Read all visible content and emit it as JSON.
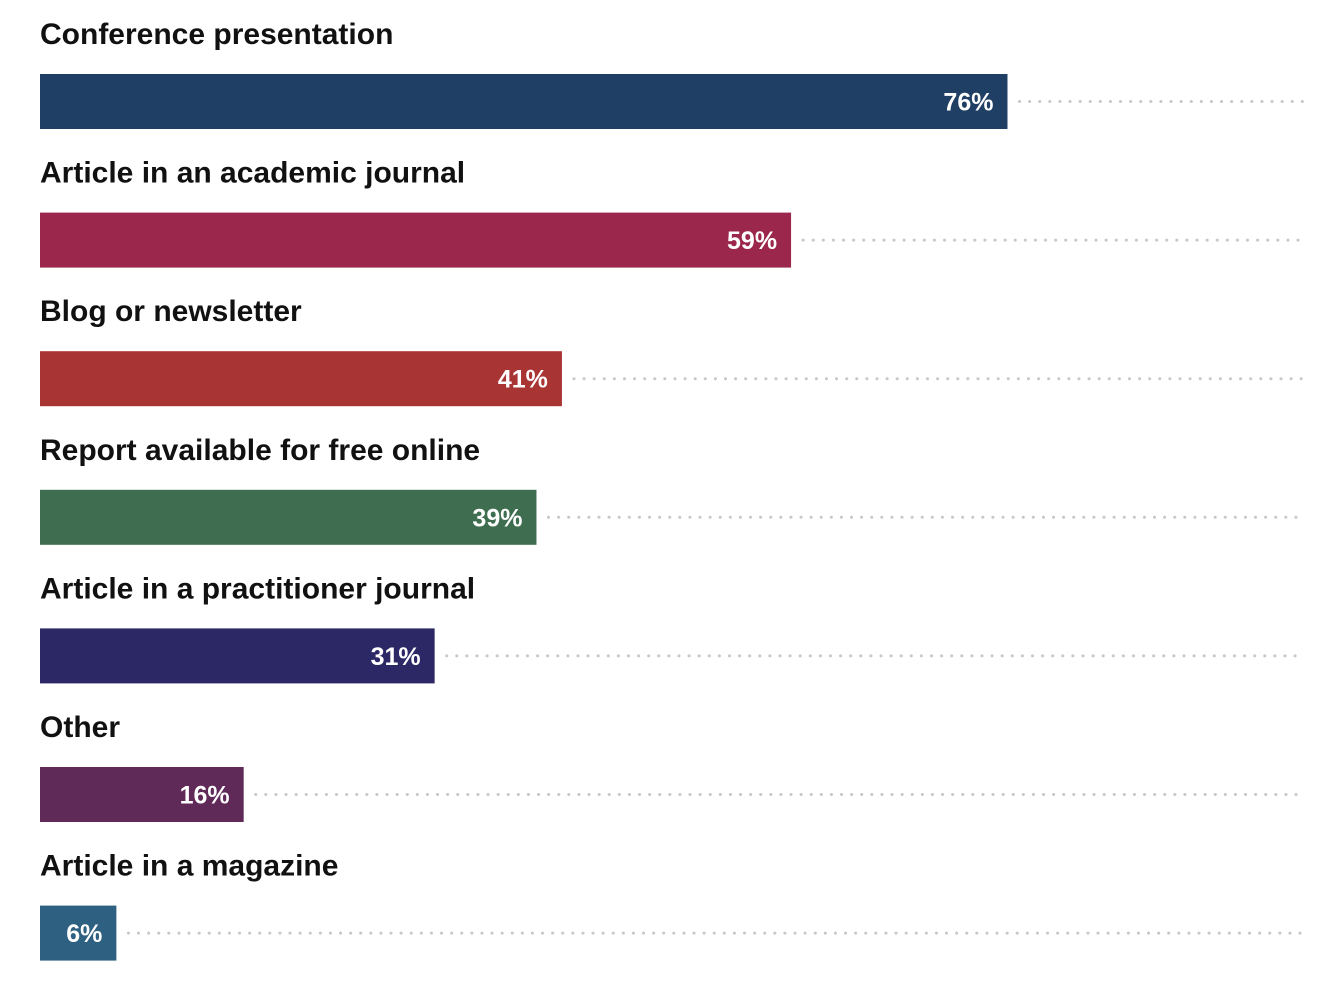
{
  "chart_data": {
    "type": "bar",
    "orientation": "horizontal",
    "categories": [
      "Conference presentation",
      "Article in an academic journal",
      "Blog or newsletter",
      "Report available for free online",
      "Article in a practitioner journal",
      "Other",
      "Article in a magazine"
    ],
    "values": [
      76,
      59,
      41,
      39,
      31,
      16,
      6
    ],
    "value_labels": [
      "76%",
      "59%",
      "41%",
      "39%",
      "31%",
      "16%",
      "6%"
    ],
    "colors": [
      "#1f3f64",
      "#9b284c",
      "#a93434",
      "#3f6d4f",
      "#2c2866",
      "#602a58",
      "#2e6081"
    ],
    "xlim": [
      0,
      100
    ],
    "grid": false,
    "legend": "none",
    "leader_lines": "dotted"
  }
}
